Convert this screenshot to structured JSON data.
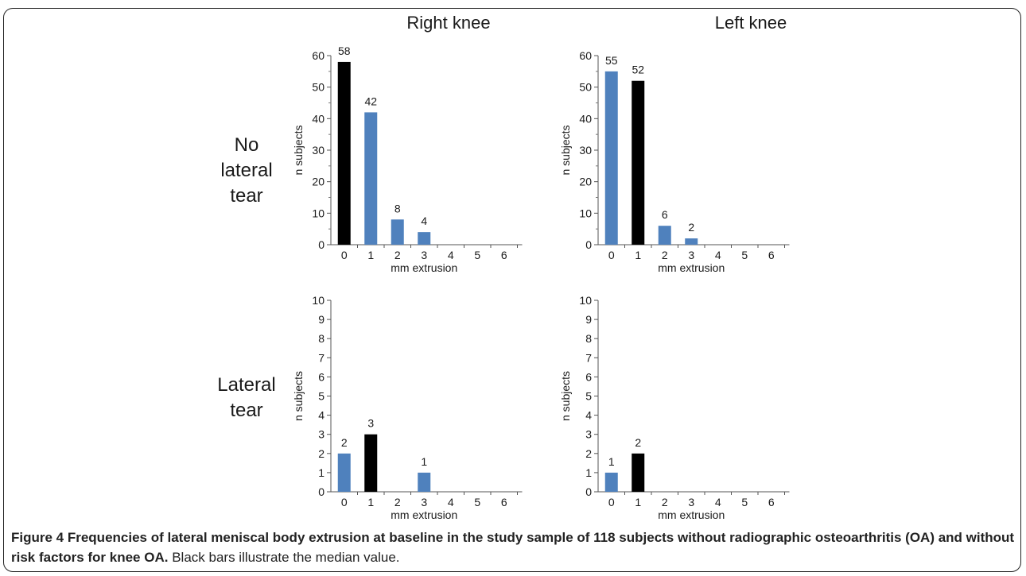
{
  "panel_titles": [
    "Right knee",
    "Left knee"
  ],
  "row_labels": [
    [
      "No",
      "lateral",
      "tear"
    ],
    [
      "Lateral",
      "tear"
    ]
  ],
  "colors": {
    "blue": "#4f81bd",
    "black": "#000000"
  },
  "chart_data": [
    {
      "type": "bar",
      "panel": "Right knee / No lateral tear",
      "categories": [
        "0",
        "1",
        "2",
        "3",
        "4",
        "5",
        "6"
      ],
      "values": [
        58,
        42,
        8,
        4,
        0,
        0,
        0
      ],
      "labels": [
        "58",
        "42",
        "8",
        "4",
        "",
        "",
        ""
      ],
      "median_index": 0,
      "xlabel": "mm extrusion",
      "ylabel": "n subjects",
      "ylim": [
        0,
        60
      ],
      "yticks": [
        0,
        10,
        20,
        30,
        40,
        50,
        60
      ]
    },
    {
      "type": "bar",
      "panel": "Left knee / No lateral tear",
      "categories": [
        "0",
        "1",
        "2",
        "3",
        "4",
        "5",
        "6"
      ],
      "values": [
        55,
        52,
        6,
        2,
        0,
        0,
        0
      ],
      "labels": [
        "55",
        "52",
        "6",
        "2",
        "",
        "",
        ""
      ],
      "median_index": 1,
      "xlabel": "mm extrusion",
      "ylabel": "n subjects",
      "ylim": [
        0,
        60
      ],
      "yticks": [
        0,
        10,
        20,
        30,
        40,
        50,
        60
      ]
    },
    {
      "type": "bar",
      "panel": "Right knee / Lateral tear",
      "categories": [
        "0",
        "1",
        "2",
        "3",
        "4",
        "5",
        "6"
      ],
      "values": [
        2,
        3,
        0,
        1,
        0,
        0,
        0
      ],
      "labels": [
        "2",
        "3",
        "",
        "1",
        "",
        "",
        ""
      ],
      "median_index": 1,
      "xlabel": "mm extrusion",
      "ylabel": "n subjects",
      "ylim": [
        0,
        10
      ],
      "yticks": [
        0,
        1,
        2,
        3,
        4,
        5,
        6,
        7,
        8,
        9,
        10
      ]
    },
    {
      "type": "bar",
      "panel": "Left knee / Lateral tear",
      "categories": [
        "0",
        "1",
        "2",
        "3",
        "4",
        "5",
        "6"
      ],
      "values": [
        1,
        2,
        0,
        0,
        0,
        0,
        0
      ],
      "labels": [
        "1",
        "2",
        "",
        "",
        "",
        "",
        ""
      ],
      "median_index": 1,
      "xlabel": "mm extrusion",
      "ylabel": "n subjects",
      "ylim": [
        0,
        10
      ],
      "yticks": [
        0,
        1,
        2,
        3,
        4,
        5,
        6,
        7,
        8,
        9,
        10
      ]
    }
  ],
  "caption": {
    "bold": "Figure 4 Frequencies of lateral meniscal body extrusion at baseline in the study sample of 118 subjects without radiographic osteoarthritis (OA) and without risk factors for knee OA.",
    "normal": "Black bars illustrate the median value."
  }
}
